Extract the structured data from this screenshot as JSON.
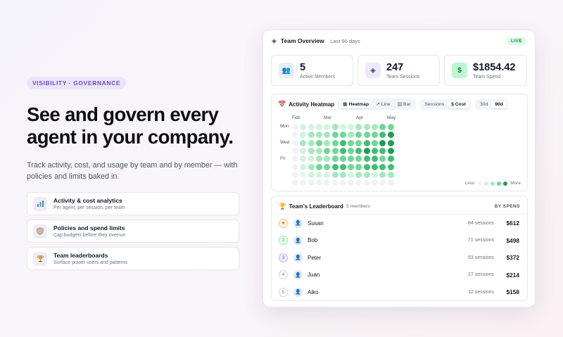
{
  "hero": {
    "tag": "VISIBILITY · GOVERNANCE",
    "headline": "See and govern every agent in your company.",
    "subtext": "Track activity, cost, and usage by team and by member — with policies and limits baked in.",
    "features": [
      {
        "icon": "bar-chart-icon",
        "title": "Activity & cost analytics",
        "desc": "Per agent, per session, per team"
      },
      {
        "icon": "shield-icon",
        "title": "Policies and spend limits",
        "desc": "Cap budgets before they overrun"
      },
      {
        "icon": "trophy-icon",
        "title": "Team leaderboards",
        "desc": "Surface power users and patterns"
      }
    ]
  },
  "panel": {
    "title": "Team Overview",
    "period": "· Last 90 days",
    "live": "LIVE",
    "stats": [
      {
        "icon": "people-icon",
        "value": "5",
        "label": "Active Members",
        "accent": "#e9eef5"
      },
      {
        "icon": "cube-icon",
        "value": "247",
        "label": "Team Sessions",
        "accent": "#ede9fb"
      },
      {
        "icon": "dollar-icon",
        "value": "$1854.42",
        "label": "Team Spend",
        "accent": "#dcfce7"
      }
    ],
    "heatmap": {
      "title": "Activity Heatmap",
      "views": [
        "Heatmap",
        "Line",
        "Bar"
      ],
      "view_icons": [
        "▦",
        "↗",
        "▥"
      ],
      "active_view": "Heatmap",
      "metrics": [
        "Sessions",
        "$ Cost"
      ],
      "active_metric": "$ Cost",
      "ranges": [
        "30d",
        "90d"
      ],
      "active_range": "90d",
      "months": [
        "Feb",
        "Mar",
        "Apr",
        "May"
      ],
      "days": [
        "Mon",
        "Wed",
        "Fri"
      ],
      "legend_less": "Less",
      "legend_more": "More",
      "colors": [
        "#f1f2f4",
        "#d3f3df",
        "#a4e8bf",
        "#6fd798",
        "#3fbf74",
        "#1f9d57"
      ],
      "levels": [
        [
          0,
          1,
          1,
          1,
          1,
          2,
          1,
          1,
          2,
          2,
          2,
          3,
          3
        ],
        [
          0,
          1,
          2,
          2,
          2,
          3,
          3,
          2,
          3,
          3,
          3,
          4,
          5
        ],
        [
          0,
          2,
          2,
          3,
          2,
          3,
          4,
          3,
          3,
          4,
          3,
          5,
          5
        ],
        [
          0,
          1,
          2,
          2,
          3,
          3,
          4,
          3,
          4,
          5,
          4,
          4,
          5
        ],
        [
          0,
          1,
          1,
          2,
          2,
          3,
          3,
          3,
          3,
          4,
          4,
          3,
          4
        ],
        [
          0,
          1,
          2,
          3,
          3,
          4,
          4,
          3,
          3,
          4,
          4,
          4,
          4
        ],
        [
          0,
          0,
          1,
          1,
          1,
          2,
          2,
          1,
          2,
          2,
          1,
          2,
          2
        ],
        [
          0,
          0,
          0,
          0,
          0,
          0,
          0,
          0,
          0,
          0,
          0,
          0,
          0
        ]
      ]
    },
    "leaderboard": {
      "title": "Team's Leaderboard",
      "members": "5 members",
      "sort": "BY SPEND",
      "rows": [
        {
          "rank": "★",
          "name": "Susan",
          "sessions": "84 sessions",
          "amount": "$612"
        },
        {
          "rank": "2",
          "name": "Bob",
          "sessions": "71 sessions",
          "amount": "$498"
        },
        {
          "rank": "3",
          "name": "Peter",
          "sessions": "53 sessions",
          "amount": "$372"
        },
        {
          "rank": "4",
          "name": "Juan",
          "sessions": "27 sessions",
          "amount": "$214"
        },
        {
          "rank": "5",
          "name": "Aiko",
          "sessions": "12 sessions",
          "amount": "$158"
        }
      ]
    }
  }
}
